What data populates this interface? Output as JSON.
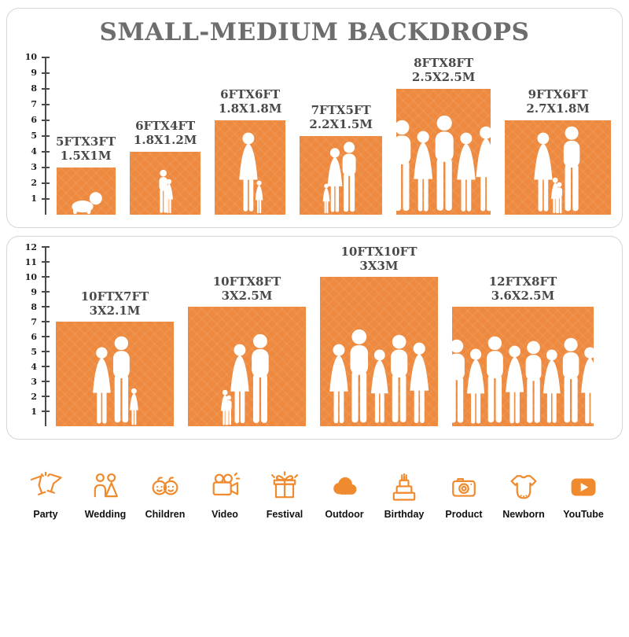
{
  "title": "SMALL-MEDIUM BACKDROPS",
  "colors": {
    "accent": "#ED8A3F",
    "icon": "#F08A2E"
  },
  "chart_data": [
    {
      "type": "bar",
      "name": "small-medium-backdrops",
      "title": "SMALL-MEDIUM BACKDROPS",
      "ylim": [
        0,
        10
      ],
      "yticks": [
        1,
        2,
        3,
        4,
        5,
        6,
        7,
        8,
        9,
        10
      ],
      "bars": [
        {
          "size_ft": "5FTX3FT",
          "size_m": "1.5X1M",
          "width_ft": 5,
          "height_ft": 3,
          "people": [
            {
              "type": "baby",
              "h": 1.6
            }
          ]
        },
        {
          "size_ft": "6FTX4FT",
          "size_m": "1.8X1.2M",
          "width_ft": 6,
          "height_ft": 4,
          "people": [
            {
              "type": "boy",
              "h": 2.9
            },
            {
              "type": "girl",
              "h": 2.3
            }
          ]
        },
        {
          "size_ft": "6FTX6FT",
          "size_m": "1.8X1.8M",
          "width_ft": 6,
          "height_ft": 6,
          "people": [
            {
              "type": "woman",
              "h": 5.3
            },
            {
              "type": "girl",
              "h": 2.2
            }
          ]
        },
        {
          "size_ft": "7FTX5FT",
          "size_m": "2.2X1.5M",
          "width_ft": 7,
          "height_ft": 5,
          "people": [
            {
              "type": "girl",
              "h": 2.0
            },
            {
              "type": "woman",
              "h": 4.3
            },
            {
              "type": "man",
              "h": 4.7
            }
          ]
        },
        {
          "size_ft": "8FTX8FT",
          "size_m": "2.5X2.5M",
          "width_ft": 8,
          "height_ft": 8,
          "people": [
            {
              "type": "man",
              "h": 6.1
            },
            {
              "type": "woman",
              "h": 5.4
            },
            {
              "type": "man",
              "h": 6.4
            },
            {
              "type": "woman",
              "h": 5.3
            },
            {
              "type": "woman",
              "h": 5.7
            }
          ]
        },
        {
          "size_ft": "9FTX6FT",
          "size_m": "2.7X1.8M",
          "width_ft": 9,
          "height_ft": 6,
          "people": [
            {
              "type": "woman",
              "h": 5.3
            },
            {
              "type": "girl",
              "h": 2.4
            },
            {
              "type": "boy",
              "h": 2.1
            },
            {
              "type": "man",
              "h": 5.7
            }
          ]
        }
      ]
    },
    {
      "type": "bar",
      "name": "medium-large-backdrops",
      "title": "",
      "ylim": [
        0,
        12
      ],
      "yticks": [
        1,
        2,
        3,
        4,
        5,
        6,
        7,
        8,
        9,
        10,
        11,
        12
      ],
      "bars": [
        {
          "size_ft": "10FTX7FT",
          "size_m": "3X2.1M",
          "width_ft": 10,
          "height_ft": 7,
          "people": [
            {
              "type": "woman",
              "h": 5.4
            },
            {
              "type": "man",
              "h": 6.1
            },
            {
              "type": "girl",
              "h": 2.6
            }
          ]
        },
        {
          "size_ft": "10FTX8FT",
          "size_m": "3X2.5M",
          "width_ft": 10,
          "height_ft": 8,
          "people": [
            {
              "type": "girl",
              "h": 2.5
            },
            {
              "type": "boy",
              "h": 2.1
            },
            {
              "type": "woman",
              "h": 5.6
            },
            {
              "type": "man",
              "h": 6.3
            }
          ]
        },
        {
          "size_ft": "10FTX10FT",
          "size_m": "3X3M",
          "width_ft": 10,
          "height_ft": 10,
          "people": [
            {
              "type": "woman",
              "h": 5.6
            },
            {
              "type": "man",
              "h": 6.6
            },
            {
              "type": "woman",
              "h": 5.2
            },
            {
              "type": "man",
              "h": 6.2
            },
            {
              "type": "woman",
              "h": 5.7
            }
          ]
        },
        {
          "size_ft": "12FTX8FT",
          "size_m": "3.6X2.5M",
          "width_ft": 12,
          "height_ft": 8,
          "people": [
            {
              "type": "man",
              "h": 5.9
            },
            {
              "type": "woman",
              "h": 5.3
            },
            {
              "type": "man",
              "h": 6.1
            },
            {
              "type": "woman",
              "h": 5.5
            },
            {
              "type": "man",
              "h": 5.8
            },
            {
              "type": "woman",
              "h": 5.2
            },
            {
              "type": "man",
              "h": 6.0
            },
            {
              "type": "woman",
              "h": 5.4
            }
          ]
        }
      ]
    }
  ],
  "categories": [
    {
      "icon": "party-icon",
      "label": "Party"
    },
    {
      "icon": "wedding-icon",
      "label": "Wedding"
    },
    {
      "icon": "children-icon",
      "label": "Children"
    },
    {
      "icon": "video-icon",
      "label": "Video"
    },
    {
      "icon": "festival-icon",
      "label": "Festival"
    },
    {
      "icon": "outdoor-icon",
      "label": "Outdoor"
    },
    {
      "icon": "birthday-icon",
      "label": "Birthday"
    },
    {
      "icon": "product-icon",
      "label": "Product"
    },
    {
      "icon": "newborn-icon",
      "label": "Newborn"
    },
    {
      "icon": "youtube-icon",
      "label": "YouTube"
    }
  ]
}
